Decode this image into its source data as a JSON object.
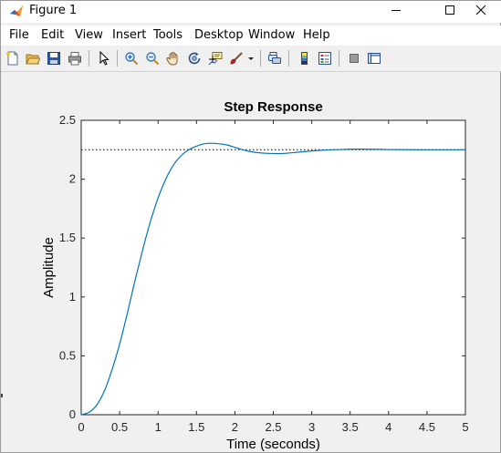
{
  "window": {
    "title": "Figure 1"
  },
  "menu": {
    "items": [
      "File",
      "Edit",
      "View",
      "Insert",
      "Tools",
      "Desktop",
      "Window",
      "Help"
    ]
  },
  "toolbar": {
    "icons": [
      "new-figure-icon",
      "open-file-icon",
      "save-icon",
      "print-icon",
      "select-arrow-icon",
      "zoom-in-icon",
      "zoom-out-icon",
      "pan-hand-icon",
      "rotate-3d-icon",
      "data-cursor-icon",
      "brush-icon",
      "brush-dropdown-icon",
      "link-plot-icon",
      "colorbar-icon",
      "legend-icon",
      "hide-plot-tools-icon",
      "show-plot-tools-icon"
    ]
  },
  "colors": {
    "line": "#0072bd",
    "steady_state_line": "#000000",
    "axes_bg": "#ffffff",
    "figure_bg": "#f0f0f0"
  },
  "chart_data": {
    "type": "line",
    "title": "Step Response",
    "xlabel": "Time (seconds)",
    "ylabel": "Amplitude",
    "xlim": [
      0,
      5
    ],
    "ylim": [
      0,
      2.5
    ],
    "xticks": [
      "0",
      "0.5",
      "1",
      "1.5",
      "2",
      "2.5",
      "3",
      "3.5",
      "4",
      "4.5",
      "5"
    ],
    "yticks": [
      "0",
      "0.5",
      "1",
      "1.5",
      "2",
      "2.5"
    ],
    "grid": false,
    "steady_state": 2.25,
    "series": [
      {
        "x": [
          0,
          0.1,
          0.2,
          0.3,
          0.4,
          0.5,
          0.6,
          0.7,
          0.8,
          0.9,
          1.0,
          1.1,
          1.2,
          1.3,
          1.4,
          1.5,
          1.6,
          1.7,
          1.8,
          1.9,
          2.0,
          2.1,
          2.2,
          2.3,
          2.4,
          2.5,
          2.6,
          2.7,
          2.8,
          2.9,
          3.0,
          3.2,
          3.4,
          3.6,
          3.8,
          4.0,
          4.2,
          4.4,
          4.6,
          4.8,
          5.0
        ],
        "y": [
          0,
          0.02,
          0.08,
          0.2,
          0.38,
          0.6,
          0.86,
          1.14,
          1.4,
          1.64,
          1.84,
          2.0,
          2.12,
          2.2,
          2.25,
          2.28,
          2.3,
          2.305,
          2.3,
          2.29,
          2.27,
          2.25,
          2.235,
          2.225,
          2.22,
          2.218,
          2.218,
          2.222,
          2.228,
          2.234,
          2.24,
          2.248,
          2.253,
          2.255,
          2.254,
          2.252,
          2.251,
          2.25,
          2.25,
          2.25,
          2.25
        ]
      }
    ]
  }
}
